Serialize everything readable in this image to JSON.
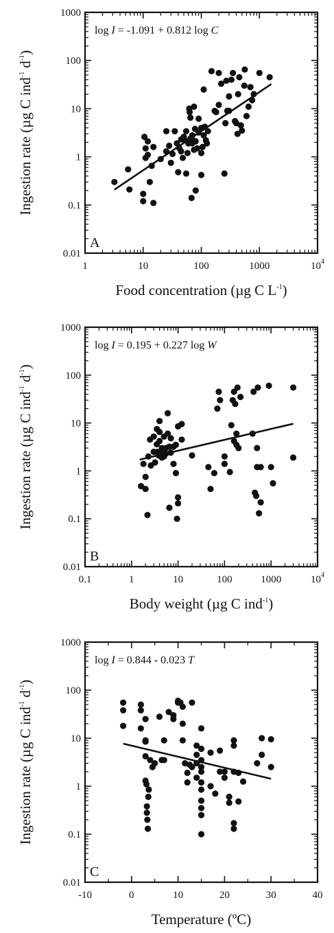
{
  "chart_data": [
    {
      "type": "scatter",
      "panel_label": "A",
      "equation": {
        "prefix": "log ",
        "var1": "I",
        "mid": " = -1.091 + 0.812 log ",
        "var2": "C"
      },
      "xlabel": {
        "main": "Food concentration (µg C L",
        "sup": "-1",
        "end": ")"
      },
      "ylabel": {
        "main": "Ingestion rate (µg C ind",
        "sup1": "-1",
        "mid": " d",
        "sup2": "-1",
        "end": ")"
      },
      "x_scale": "log",
      "y_scale": "log",
      "xlim": [
        1,
        10000
      ],
      "ylim": [
        0.01,
        1000
      ],
      "x_ticks": [
        {
          "v": 1,
          "label": "1"
        },
        {
          "v": 10,
          "label": "10"
        },
        {
          "v": 100,
          "label": "100"
        },
        {
          "v": 1000,
          "label": "1000"
        },
        {
          "v": 10000,
          "label": "10",
          "sup": "4"
        }
      ],
      "y_ticks": [
        {
          "v": 0.01,
          "label": "0.01"
        },
        {
          "v": 0.1,
          "label": "0.1"
        },
        {
          "v": 1,
          "label": "1"
        },
        {
          "v": 10,
          "label": "10"
        },
        {
          "v": 100,
          "label": "100"
        },
        {
          "v": 1000,
          "label": "1000"
        }
      ],
      "fit_line": {
        "intercept": -1.091,
        "slope": 0.812,
        "x_range": [
          3.2,
          1600
        ]
      },
      "points": [
        [
          3.2,
          0.3
        ],
        [
          5.5,
          0.55
        ],
        [
          5.8,
          0.21
        ],
        [
          10,
          0.17
        ],
        [
          10,
          0.12
        ],
        [
          10.5,
          2.6
        ],
        [
          11,
          1.5
        ],
        [
          11,
          0.95
        ],
        [
          12,
          2.1
        ],
        [
          12,
          1.1
        ],
        [
          13,
          0.3
        ],
        [
          14,
          0.65
        ],
        [
          15,
          0.11
        ],
        [
          15,
          1.6
        ],
        [
          20,
          0.9
        ],
        [
          25,
          3.4
        ],
        [
          25,
          1.3
        ],
        [
          28,
          1.7
        ],
        [
          30,
          0.75
        ],
        [
          32,
          1.15
        ],
        [
          35,
          3.4
        ],
        [
          38,
          1.9
        ],
        [
          40,
          0.48
        ],
        [
          42,
          1.5
        ],
        [
          45,
          2.3
        ],
        [
          45,
          1.3
        ],
        [
          48,
          0.95
        ],
        [
          50,
          2.6
        ],
        [
          52,
          2.2
        ],
        [
          55,
          3.4
        ],
        [
          55,
          0.45
        ],
        [
          58,
          1.2
        ],
        [
          60,
          1.9
        ],
        [
          62,
          10
        ],
        [
          63,
          8.5
        ],
        [
          65,
          2.4
        ],
        [
          65,
          6.5
        ],
        [
          68,
          0.14
        ],
        [
          70,
          1.9
        ],
        [
          70,
          2.8
        ],
        [
          72,
          2.2
        ],
        [
          75,
          11
        ],
        [
          75,
          1.4
        ],
        [
          78,
          3.8
        ],
        [
          80,
          2.1
        ],
        [
          80,
          0.2
        ],
        [
          85,
          1.5
        ],
        [
          90,
          3.2
        ],
        [
          90,
          6.2
        ],
        [
          100,
          4.0
        ],
        [
          100,
          1.2
        ],
        [
          100,
          0.42
        ],
        [
          105,
          1.6
        ],
        [
          110,
          2.8
        ],
        [
          110,
          25
        ],
        [
          115,
          4.2
        ],
        [
          120,
          2.2
        ],
        [
          125,
          1.9
        ],
        [
          130,
          3.4
        ],
        [
          150,
          60
        ],
        [
          170,
          9
        ],
        [
          180,
          8.5
        ],
        [
          200,
          55
        ],
        [
          200,
          12
        ],
        [
          220,
          33
        ],
        [
          250,
          0.45
        ],
        [
          260,
          5
        ],
        [
          270,
          38
        ],
        [
          280,
          9
        ],
        [
          300,
          18
        ],
        [
          300,
          9
        ],
        [
          330,
          40
        ],
        [
          350,
          55
        ],
        [
          380,
          5.5
        ],
        [
          400,
          5
        ],
        [
          420,
          3
        ],
        [
          430,
          20
        ],
        [
          450,
          45
        ],
        [
          480,
          4.5
        ],
        [
          500,
          3.5
        ],
        [
          550,
          30
        ],
        [
          560,
          65
        ],
        [
          600,
          7
        ],
        [
          650,
          11
        ],
        [
          700,
          28
        ],
        [
          750,
          15
        ],
        [
          800,
          20
        ],
        [
          1000,
          55
        ],
        [
          1500,
          45
        ]
      ]
    },
    {
      "type": "scatter",
      "panel_label": "B",
      "equation": {
        "prefix": "log ",
        "var1": "I",
        "mid": " = 0.195 + 0.227 log ",
        "var2": "W"
      },
      "xlabel": {
        "main": "Body weight (µg C ind",
        "sup": "-1",
        "end": ")"
      },
      "ylabel": {
        "main": "Ingestion rate (µg C ind",
        "sup1": "-1",
        "mid": " d",
        "sup2": "-1",
        "end": ")"
      },
      "x_scale": "log",
      "y_scale": "log",
      "xlim": [
        0.1,
        10000
      ],
      "ylim": [
        0.01,
        1000
      ],
      "x_ticks": [
        {
          "v": 0.1,
          "label": "0.1"
        },
        {
          "v": 1,
          "label": "1"
        },
        {
          "v": 10,
          "label": "10"
        },
        {
          "v": 100,
          "label": "100"
        },
        {
          "v": 1000,
          "label": "1000"
        },
        {
          "v": 10000,
          "label": "10",
          "sup": "4"
        }
      ],
      "y_ticks": [
        {
          "v": 0.01,
          "label": "0.01"
        },
        {
          "v": 0.1,
          "label": "0.1"
        },
        {
          "v": 1,
          "label": "1"
        },
        {
          "v": 10,
          "label": "10"
        },
        {
          "v": 100,
          "label": "100"
        },
        {
          "v": 1000,
          "label": "1000"
        }
      ],
      "fit_line": {
        "intercept": 0.195,
        "slope": 0.227,
        "x_range": [
          1.5,
          3000
        ]
      },
      "points": [
        [
          1.6,
          0.48
        ],
        [
          1.8,
          1.4
        ],
        [
          2,
          0.42
        ],
        [
          2,
          0.75
        ],
        [
          2.2,
          0.12
        ],
        [
          2.3,
          2.0
        ],
        [
          2.5,
          4.5
        ],
        [
          2.6,
          1.3
        ],
        [
          3,
          2.5
        ],
        [
          3,
          5.2
        ],
        [
          3.2,
          1.5
        ],
        [
          3.5,
          7.5
        ],
        [
          3.5,
          3.6
        ],
        [
          3.6,
          2.5
        ],
        [
          3.8,
          2.1
        ],
        [
          4,
          6.5
        ],
        [
          4,
          11
        ],
        [
          4,
          4.2
        ],
        [
          4.2,
          2.5
        ],
        [
          4.5,
          1.9
        ],
        [
          4.5,
          3.0
        ],
        [
          4.8,
          2.3
        ],
        [
          5,
          5.2
        ],
        [
          5,
          2.0
        ],
        [
          5.5,
          3.0
        ],
        [
          5.5,
          2.3
        ],
        [
          6,
          16
        ],
        [
          6,
          6.0
        ],
        [
          6.5,
          3.2
        ],
        [
          6.5,
          0.17
        ],
        [
          7,
          2.4
        ],
        [
          7,
          4.8
        ],
        [
          8,
          3.2
        ],
        [
          8,
          1.4
        ],
        [
          9,
          0.9
        ],
        [
          9,
          3.5
        ],
        [
          9.5,
          0.1
        ],
        [
          10,
          0.21
        ],
        [
          10,
          0.28
        ],
        [
          10,
          8.5
        ],
        [
          12,
          4.5
        ],
        [
          12,
          9.5
        ],
        [
          20,
          2.1
        ],
        [
          45,
          1.2
        ],
        [
          50,
          0.42
        ],
        [
          60,
          0.9
        ],
        [
          70,
          20
        ],
        [
          75,
          45
        ],
        [
          80,
          30
        ],
        [
          100,
          2.0
        ],
        [
          100,
          1.4
        ],
        [
          130,
          0.95
        ],
        [
          140,
          9
        ],
        [
          150,
          30
        ],
        [
          160,
          4.2
        ],
        [
          160,
          45
        ],
        [
          170,
          25
        ],
        [
          180,
          6
        ],
        [
          180,
          3.5
        ],
        [
          190,
          55
        ],
        [
          200,
          3
        ],
        [
          220,
          35
        ],
        [
          400,
          6
        ],
        [
          420,
          45
        ],
        [
          450,
          0.35
        ],
        [
          480,
          0.3
        ],
        [
          500,
          1.2
        ],
        [
          500,
          3
        ],
        [
          520,
          55
        ],
        [
          550,
          0.13
        ],
        [
          600,
          1.2
        ],
        [
          600,
          0.22
        ],
        [
          900,
          60
        ],
        [
          1000,
          1.2
        ],
        [
          1100,
          0.55
        ],
        [
          3000,
          55
        ],
        [
          3000,
          1.9
        ]
      ]
    },
    {
      "type": "scatter",
      "panel_label": "C",
      "equation": {
        "prefix": "log ",
        "var1": "I",
        "mid": " = 0.844 - 0.023 ",
        "var2": "T"
      },
      "xlabel": {
        "main": "Temperature (ºC)",
        "sup": "",
        "end": ""
      },
      "ylabel": {
        "main": "Ingestion rate (µg C ind",
        "sup1": "-1",
        "mid": " d",
        "sup2": "-1",
        "end": ")"
      },
      "x_scale": "linear",
      "y_scale": "log",
      "xlim": [
        -10,
        40
      ],
      "ylim": [
        0.01,
        1000
      ],
      "x_ticks": [
        {
          "v": -10,
          "label": "-10"
        },
        {
          "v": 0,
          "label": "0"
        },
        {
          "v": 10,
          "label": "10"
        },
        {
          "v": 20,
          "label": "20"
        },
        {
          "v": 30,
          "label": "30"
        },
        {
          "v": 40,
          "label": "40"
        }
      ],
      "y_ticks": [
        {
          "v": 0.01,
          "label": "0.01"
        },
        {
          "v": 0.1,
          "label": "0.1"
        },
        {
          "v": 1,
          "label": "1"
        },
        {
          "v": 10,
          "label": "10"
        },
        {
          "v": 100,
          "label": "100"
        },
        {
          "v": 1000,
          "label": "1000"
        }
      ],
      "fit_line": {
        "intercept": 0.844,
        "slope": -0.023,
        "x_range": [
          -1.8,
          30
        ]
      },
      "points": [
        [
          -1.8,
          55
        ],
        [
          -1.8,
          38
        ],
        [
          -1.8,
          18
        ],
        [
          2,
          50
        ],
        [
          2,
          38
        ],
        [
          2,
          16
        ],
        [
          3,
          25
        ],
        [
          3,
          8.5
        ],
        [
          3,
          9
        ],
        [
          3,
          4.2
        ],
        [
          3,
          1.3
        ],
        [
          3.2,
          1.1
        ],
        [
          3.3,
          0.38
        ],
        [
          3.3,
          0.28
        ],
        [
          3.4,
          0.2
        ],
        [
          3.5,
          0.13
        ],
        [
          3.6,
          0.6
        ],
        [
          3.7,
          0.85
        ],
        [
          4,
          3.5
        ],
        [
          4.5,
          2.5
        ],
        [
          5,
          3
        ],
        [
          6,
          28
        ],
        [
          6.5,
          3.5
        ],
        [
          7,
          9
        ],
        [
          7,
          3.5
        ],
        [
          8,
          35
        ],
        [
          9,
          30
        ],
        [
          9,
          25
        ],
        [
          10,
          55
        ],
        [
          10,
          60
        ],
        [
          10.5,
          55
        ],
        [
          11,
          45
        ],
        [
          11,
          20
        ],
        [
          11,
          9
        ],
        [
          11.5,
          3
        ],
        [
          12,
          1.2
        ],
        [
          12,
          1.9
        ],
        [
          12.5,
          2.8
        ],
        [
          13,
          55
        ],
        [
          13,
          2.5
        ],
        [
          14,
          7
        ],
        [
          14,
          4.5
        ],
        [
          14,
          1.5
        ],
        [
          14,
          3
        ],
        [
          15,
          16
        ],
        [
          15,
          6
        ],
        [
          15,
          3.5
        ],
        [
          15,
          2.5
        ],
        [
          15,
          2
        ],
        [
          15,
          1.2
        ],
        [
          15,
          0.85
        ],
        [
          15,
          0.5
        ],
        [
          15,
          0.35
        ],
        [
          15,
          0.25
        ],
        [
          15,
          0.1
        ],
        [
          17,
          5
        ],
        [
          17,
          1
        ],
        [
          18,
          0.7
        ],
        [
          19,
          2
        ],
        [
          19,
          5.5
        ],
        [
          20,
          1.5
        ],
        [
          20,
          2
        ],
        [
          21,
          0.45
        ],
        [
          21,
          0.6
        ],
        [
          22,
          9
        ],
        [
          22,
          7
        ],
        [
          22,
          2
        ],
        [
          22,
          0.17
        ],
        [
          22,
          0.13
        ],
        [
          23,
          1.9
        ],
        [
          23,
          0.48
        ],
        [
          24,
          1.25
        ],
        [
          27,
          3
        ],
        [
          28,
          10
        ],
        [
          28,
          4.5
        ],
        [
          30,
          9.5
        ],
        [
          30,
          2.5
        ]
      ]
    }
  ]
}
